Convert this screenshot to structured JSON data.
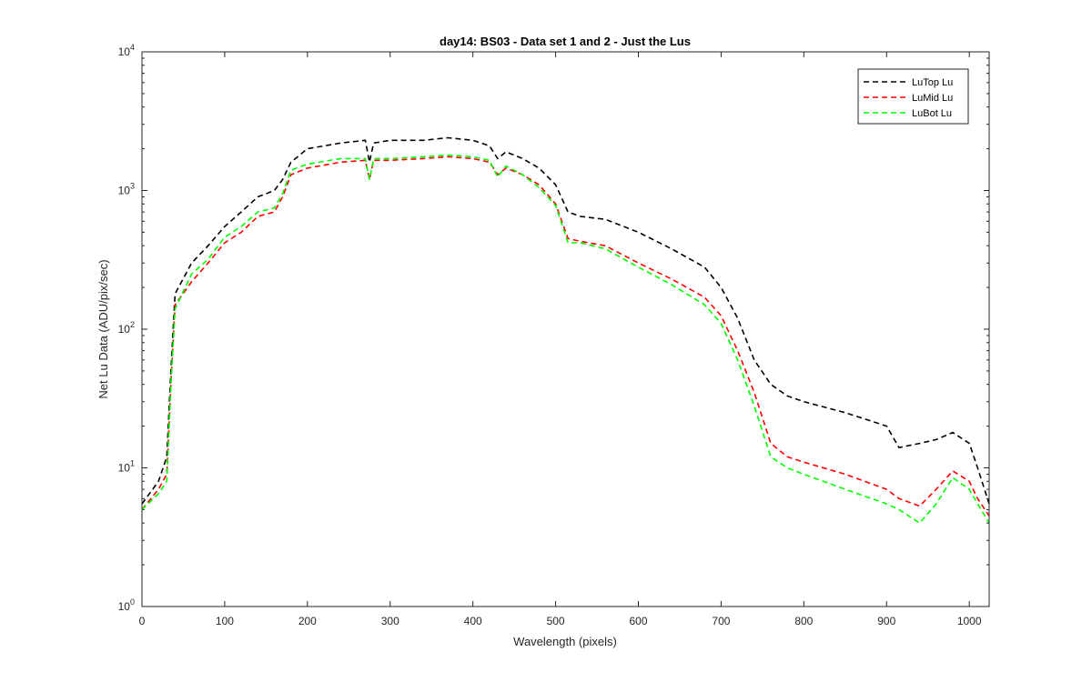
{
  "chart_data": {
    "type": "line",
    "title": "day14: BS03 - Data set 1 and 2 - Just the Lus",
    "xlabel": "Wavelength (pixels)",
    "ylabel": "Net Lu Data (ADU/pix/sec)",
    "xlim": [
      0,
      1024
    ],
    "ylim": [
      1,
      10000
    ],
    "yscale": "log",
    "grid": false,
    "legend_position": "top-right",
    "x_ticks": [
      0,
      100,
      200,
      300,
      400,
      500,
      600,
      700,
      800,
      900,
      1000
    ],
    "x_tick_labels": [
      "0",
      "100",
      "200",
      "300",
      "400",
      "500",
      "600",
      "700",
      "800",
      "900",
      "1000"
    ],
    "y_ticks": [
      1,
      10,
      100,
      1000,
      10000
    ],
    "y_tick_labels": [
      {
        "base": "10",
        "exp": "0"
      },
      {
        "base": "10",
        "exp": "1"
      },
      {
        "base": "10",
        "exp": "2"
      },
      {
        "base": "10",
        "exp": "3"
      },
      {
        "base": "10",
        "exp": "4"
      }
    ],
    "x": [
      0,
      20,
      30,
      35,
      40,
      60,
      80,
      100,
      120,
      140,
      160,
      170,
      180,
      200,
      240,
      270,
      275,
      280,
      300,
      340,
      370,
      400,
      420,
      430,
      440,
      460,
      480,
      500,
      515,
      530,
      560,
      600,
      640,
      680,
      700,
      720,
      740,
      760,
      780,
      800,
      850,
      900,
      915,
      940,
      960,
      980,
      1000,
      1010,
      1024
    ],
    "series": [
      {
        "name": "LuTop  Lu",
        "color": "#000000",
        "values": [
          5.5,
          8,
          12,
          50,
          180,
          300,
          400,
          550,
          700,
          900,
          1000,
          1200,
          1600,
          2000,
          2200,
          2300,
          1600,
          2200,
          2300,
          2300,
          2400,
          2300,
          2100,
          1700,
          1900,
          1700,
          1450,
          1100,
          700,
          650,
          620,
          500,
          380,
          280,
          200,
          120,
          60,
          40,
          33,
          30,
          25,
          20,
          14,
          15,
          16,
          18,
          15,
          10,
          5.5
        ]
      },
      {
        "name": "LuMid  Lu",
        "color": "#ff0000",
        "values": [
          5,
          7,
          9,
          40,
          150,
          220,
          300,
          420,
          500,
          650,
          700,
          900,
          1300,
          1450,
          1600,
          1650,
          1200,
          1650,
          1650,
          1700,
          1750,
          1700,
          1600,
          1300,
          1450,
          1300,
          1100,
          800,
          450,
          430,
          400,
          300,
          230,
          170,
          125,
          70,
          35,
          15,
          12,
          11,
          9,
          7,
          6,
          5.3,
          7,
          9.5,
          8,
          6,
          4.5
        ]
      },
      {
        "name": "LuBot  Lu",
        "color": "#00ff00",
        "values": [
          5,
          6.5,
          8,
          40,
          140,
          250,
          320,
          460,
          550,
          700,
          750,
          950,
          1400,
          1550,
          1700,
          1700,
          1200,
          1700,
          1700,
          1750,
          1800,
          1750,
          1650,
          1250,
          1500,
          1300,
          1050,
          780,
          420,
          420,
          380,
          280,
          210,
          150,
          110,
          60,
          28,
          12,
          10,
          9,
          7,
          5.5,
          5,
          4,
          5.5,
          8.5,
          7,
          5.5,
          4
        ]
      }
    ]
  }
}
